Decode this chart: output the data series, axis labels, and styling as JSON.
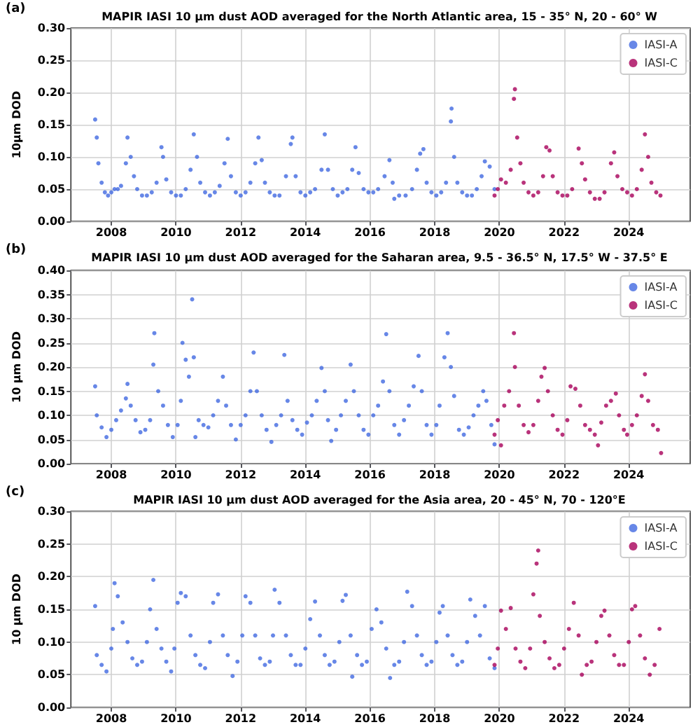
{
  "chart_data": [
    {
      "type": "scatter",
      "title": "MAPIR IASI 10 µm dust AOD averaged for the North Atlantic area, 15 - 35° N, 20 - 60° W",
      "ylabel": "10µm DOD",
      "annotations": [
        "(a)"
      ],
      "legend": "top right",
      "grid": true,
      "marker": "circle",
      "xlim": [
        2006.75,
        2025.9
      ],
      "xticks": [
        2008,
        2010,
        2012,
        2014,
        2016,
        2018,
        2020,
        2022,
        2024
      ],
      "ylim": [
        0,
        0.3
      ],
      "yticks": [
        {
          "value": 0,
          "label": "0.00"
        },
        {
          "value": 0.05,
          "label": "0.05"
        },
        {
          "value": 0.1,
          "label": "0.10"
        },
        {
          "value": 0.15,
          "label": "0.15"
        },
        {
          "value": 0.2,
          "label": "0.20"
        },
        {
          "value": 0.25,
          "label": "0.25"
        },
        {
          "value": 0.3,
          "label": "0.30"
        }
      ],
      "series": [
        {
          "name": "IASI-A",
          "color": "#4169e1",
          "x": [
            2007.5,
            2007.55,
            2007.6,
            2007.7,
            2007.8,
            2007.9,
            2008.0,
            2008.1,
            2008.2,
            2008.3,
            2008.45,
            2008.5,
            2008.6,
            2008.7,
            2008.8,
            2008.95,
            2009.1,
            2009.25,
            2009.4,
            2009.55,
            2009.6,
            2009.7,
            2009.85,
            2010.0,
            2010.15,
            2010.3,
            2010.45,
            2010.55,
            2010.65,
            2010.75,
            2010.9,
            2011.05,
            2011.2,
            2011.35,
            2011.5,
            2011.6,
            2011.7,
            2011.85,
            2012.0,
            2012.15,
            2012.3,
            2012.45,
            2012.55,
            2012.65,
            2012.75,
            2012.9,
            2013.05,
            2013.2,
            2013.4,
            2013.55,
            2013.6,
            2013.7,
            2013.85,
            2014.0,
            2014.15,
            2014.3,
            2014.5,
            2014.6,
            2014.7,
            2014.85,
            2015.0,
            2015.15,
            2015.3,
            2015.45,
            2015.55,
            2015.65,
            2015.8,
            2015.95,
            2016.1,
            2016.25,
            2016.45,
            2016.6,
            2016.7,
            2016.75,
            2016.9,
            2017.1,
            2017.3,
            2017.45,
            2017.55,
            2017.65,
            2017.75,
            2017.9,
            2018.05,
            2018.2,
            2018.35,
            2018.5,
            2018.52,
            2018.6,
            2018.7,
            2018.85,
            2019.0,
            2019.15,
            2019.3,
            2019.45,
            2019.55,
            2019.7,
            2019.85
          ],
          "values": [
            0.158,
            0.13,
            0.09,
            0.06,
            0.045,
            0.04,
            0.045,
            0.05,
            0.05,
            0.055,
            0.09,
            0.13,
            0.1,
            0.07,
            0.05,
            0.04,
            0.04,
            0.045,
            0.06,
            0.115,
            0.1,
            0.065,
            0.045,
            0.04,
            0.04,
            0.05,
            0.08,
            0.135,
            0.1,
            0.06,
            0.045,
            0.04,
            0.045,
            0.055,
            0.09,
            0.128,
            0.07,
            0.045,
            0.04,
            0.045,
            0.06,
            0.09,
            0.13,
            0.095,
            0.06,
            0.045,
            0.04,
            0.04,
            0.07,
            0.12,
            0.13,
            0.07,
            0.045,
            0.04,
            0.045,
            0.05,
            0.08,
            0.135,
            0.08,
            0.05,
            0.04,
            0.045,
            0.05,
            0.08,
            0.115,
            0.075,
            0.05,
            0.045,
            0.045,
            0.05,
            0.07,
            0.095,
            0.06,
            0.035,
            0.04,
            0.04,
            0.05,
            0.08,
            0.105,
            0.112,
            0.06,
            0.045,
            0.04,
            0.045,
            0.06,
            0.155,
            0.175,
            0.1,
            0.06,
            0.045,
            0.04,
            0.04,
            0.05,
            0.07,
            0.093,
            0.085,
            0.05
          ]
        },
        {
          "name": "IASI-C",
          "color": "#a8005a",
          "x": [
            2019.85,
            2019.95,
            2020.05,
            2020.2,
            2020.35,
            2020.45,
            2020.48,
            2020.55,
            2020.65,
            2020.75,
            2020.9,
            2021.05,
            2021.2,
            2021.35,
            2021.45,
            2021.55,
            2021.65,
            2021.8,
            2021.95,
            2022.1,
            2022.25,
            2022.45,
            2022.55,
            2022.65,
            2022.8,
            2022.95,
            2023.1,
            2023.25,
            2023.45,
            2023.55,
            2023.65,
            2023.8,
            2023.95,
            2024.1,
            2024.25,
            2024.4,
            2024.5,
            2024.6,
            2024.7,
            2024.85,
            2024.98
          ],
          "values": [
            0.04,
            0.05,
            0.065,
            0.06,
            0.08,
            0.19,
            0.205,
            0.13,
            0.09,
            0.06,
            0.045,
            0.04,
            0.045,
            0.07,
            0.115,
            0.11,
            0.07,
            0.045,
            0.04,
            0.04,
            0.05,
            0.113,
            0.09,
            0.065,
            0.045,
            0.035,
            0.035,
            0.045,
            0.09,
            0.107,
            0.07,
            0.05,
            0.045,
            0.04,
            0.05,
            0.08,
            0.135,
            0.1,
            0.06,
            0.045,
            0.04
          ]
        }
      ]
    },
    {
      "type": "scatter",
      "title": "MAPIR IASI 10 µm dust AOD averaged for the Saharan area, 9.5 - 36.5° N, 17.5° W - 37.5° E",
      "ylabel": "10 µm DOD",
      "annotations": [
        "(b)"
      ],
      "legend": "top right",
      "grid": true,
      "marker": "circle",
      "xlim": [
        2006.75,
        2025.9
      ],
      "xticks": [
        2008,
        2010,
        2012,
        2014,
        2016,
        2018,
        2020,
        2022,
        2024
      ],
      "ylim": [
        0,
        0.4
      ],
      "yticks": [
        {
          "value": 0,
          "label": "0.00"
        },
        {
          "value": 0.05,
          "label": "0.05"
        },
        {
          "value": 0.1,
          "label": "0.10"
        },
        {
          "value": 0.15,
          "label": "0.15"
        },
        {
          "value": 0.2,
          "label": "0.20"
        },
        {
          "value": 0.25,
          "label": "0.25"
        },
        {
          "value": 0.3,
          "label": "0.30"
        },
        {
          "value": 0.35,
          "label": "0.35"
        },
        {
          "value": 0.4,
          "label": "0.40"
        }
      ],
      "series": [
        {
          "name": "IASI-A",
          "color": "#4169e1",
          "x": [
            2007.5,
            2007.55,
            2007.7,
            2007.85,
            2008.0,
            2008.15,
            2008.3,
            2008.45,
            2008.5,
            2008.6,
            2008.75,
            2008.9,
            2009.05,
            2009.2,
            2009.3,
            2009.33,
            2009.45,
            2009.6,
            2009.75,
            2009.9,
            2010.05,
            2010.15,
            2010.2,
            2010.3,
            2010.4,
            2010.5,
            2010.55,
            2010.6,
            2010.7,
            2010.85,
            2011.0,
            2011.15,
            2011.3,
            2011.45,
            2011.55,
            2011.7,
            2011.85,
            2012.0,
            2012.15,
            2012.3,
            2012.4,
            2012.5,
            2012.65,
            2012.8,
            2012.95,
            2013.1,
            2013.25,
            2013.35,
            2013.45,
            2013.6,
            2013.75,
            2013.9,
            2014.05,
            2014.2,
            2014.35,
            2014.5,
            2014.6,
            2014.7,
            2014.8,
            2014.95,
            2015.1,
            2015.25,
            2015.4,
            2015.5,
            2015.65,
            2015.8,
            2015.95,
            2016.1,
            2016.25,
            2016.4,
            2016.5,
            2016.6,
            2016.75,
            2016.9,
            2017.05,
            2017.2,
            2017.35,
            2017.5,
            2017.6,
            2017.75,
            2017.9,
            2018.05,
            2018.15,
            2018.3,
            2018.4,
            2018.5,
            2018.6,
            2018.75,
            2018.9,
            2019.05,
            2019.2,
            2019.35,
            2019.5,
            2019.6,
            2019.75,
            2019.85
          ],
          "values": [
            0.16,
            0.1,
            0.075,
            0.055,
            0.07,
            0.09,
            0.11,
            0.135,
            0.165,
            0.12,
            0.09,
            0.065,
            0.07,
            0.09,
            0.205,
            0.27,
            0.15,
            0.12,
            0.08,
            0.055,
            0.08,
            0.13,
            0.25,
            0.215,
            0.18,
            0.34,
            0.22,
            0.055,
            0.09,
            0.08,
            0.075,
            0.1,
            0.13,
            0.18,
            0.12,
            0.08,
            0.05,
            0.08,
            0.1,
            0.15,
            0.23,
            0.15,
            0.1,
            0.07,
            0.045,
            0.08,
            0.1,
            0.225,
            0.13,
            0.09,
            0.07,
            0.06,
            0.085,
            0.1,
            0.13,
            0.198,
            0.15,
            0.09,
            0.047,
            0.07,
            0.1,
            0.13,
            0.205,
            0.15,
            0.1,
            0.07,
            0.06,
            0.1,
            0.12,
            0.17,
            0.268,
            0.15,
            0.08,
            0.06,
            0.09,
            0.12,
            0.16,
            0.223,
            0.15,
            0.08,
            0.06,
            0.08,
            0.12,
            0.22,
            0.27,
            0.2,
            0.14,
            0.07,
            0.06,
            0.075,
            0.1,
            0.12,
            0.15,
            0.13,
            0.08,
            0.04
          ]
        },
        {
          "name": "IASI-C",
          "color": "#a8005a",
          "x": [
            2019.85,
            2019.95,
            2020.05,
            2020.15,
            2020.3,
            2020.45,
            2020.48,
            2020.6,
            2020.75,
            2020.9,
            2021.05,
            2021.2,
            2021.3,
            2021.4,
            2021.5,
            2021.65,
            2021.8,
            2021.95,
            2022.1,
            2022.2,
            2022.35,
            2022.5,
            2022.65,
            2022.8,
            2022.95,
            2023.05,
            2023.15,
            2023.3,
            2023.45,
            2023.6,
            2023.7,
            2023.85,
            2023.95,
            2024.1,
            2024.25,
            2024.4,
            2024.5,
            2024.6,
            2024.75,
            2024.9,
            2025.0
          ],
          "values": [
            0.06,
            0.09,
            0.038,
            0.12,
            0.15,
            0.27,
            0.2,
            0.12,
            0.08,
            0.065,
            0.08,
            0.13,
            0.18,
            0.198,
            0.15,
            0.1,
            0.07,
            0.06,
            0.09,
            0.16,
            0.155,
            0.12,
            0.08,
            0.07,
            0.06,
            0.038,
            0.085,
            0.12,
            0.13,
            0.145,
            0.1,
            0.07,
            0.06,
            0.08,
            0.1,
            0.14,
            0.185,
            0.13,
            0.08,
            0.07,
            0.022
          ]
        }
      ]
    },
    {
      "type": "scatter",
      "title": "MAPIR IASI 10 µm dust AOD averaged for the Asia area, 20 - 45° N, 70 - 120°E",
      "ylabel": "10 µm DOD",
      "annotations": [
        "(c)"
      ],
      "legend": "top right",
      "grid": true,
      "marker": "circle",
      "xlim": [
        2006.75,
        2025.9
      ],
      "xticks": [
        2008,
        2010,
        2012,
        2014,
        2016,
        2018,
        2020,
        2022,
        2024
      ],
      "ylim": [
        0,
        0.3
      ],
      "yticks": [
        {
          "value": 0,
          "label": "0.00"
        },
        {
          "value": 0.05,
          "label": "0.05"
        },
        {
          "value": 0.1,
          "label": "0.10"
        },
        {
          "value": 0.15,
          "label": "0.15"
        },
        {
          "value": 0.2,
          "label": "0.20"
        },
        {
          "value": 0.25,
          "label": "0.25"
        },
        {
          "value": 0.3,
          "label": "0.30"
        }
      ],
      "series": [
        {
          "name": "IASI-A",
          "color": "#4169e1",
          "x": [
            2007.5,
            2007.55,
            2007.7,
            2007.85,
            2008.0,
            2008.05,
            2008.1,
            2008.2,
            2008.35,
            2008.5,
            2008.65,
            2008.8,
            2008.95,
            2009.1,
            2009.2,
            2009.3,
            2009.4,
            2009.55,
            2009.7,
            2009.85,
            2009.95,
            2010.05,
            2010.15,
            2010.3,
            2010.45,
            2010.6,
            2010.75,
            2010.9,
            2011.05,
            2011.15,
            2011.3,
            2011.45,
            2011.6,
            2011.75,
            2011.9,
            2012.05,
            2012.15,
            2012.3,
            2012.45,
            2012.6,
            2012.75,
            2012.9,
            2013.0,
            2013.05,
            2013.2,
            2013.4,
            2013.55,
            2013.7,
            2013.85,
            2014.0,
            2014.15,
            2014.3,
            2014.45,
            2014.6,
            2014.75,
            2014.9,
            2015.05,
            2015.15,
            2015.25,
            2015.4,
            2015.45,
            2015.6,
            2015.75,
            2015.9,
            2016.05,
            2016.2,
            2016.35,
            2016.5,
            2016.62,
            2016.75,
            2016.9,
            2017.05,
            2017.15,
            2017.3,
            2017.45,
            2017.6,
            2017.75,
            2017.9,
            2018.05,
            2018.15,
            2018.25,
            2018.4,
            2018.55,
            2018.7,
            2018.85,
            2019.0,
            2019.1,
            2019.25,
            2019.4,
            2019.55,
            2019.7,
            2019.85
          ],
          "values": [
            0.155,
            0.08,
            0.065,
            0.055,
            0.09,
            0.12,
            0.19,
            0.17,
            0.13,
            0.1,
            0.075,
            0.065,
            0.07,
            0.1,
            0.15,
            0.195,
            0.12,
            0.09,
            0.07,
            0.055,
            0.09,
            0.16,
            0.175,
            0.17,
            0.11,
            0.08,
            0.065,
            0.06,
            0.1,
            0.16,
            0.173,
            0.11,
            0.08,
            0.048,
            0.07,
            0.11,
            0.17,
            0.16,
            0.11,
            0.075,
            0.065,
            0.07,
            0.11,
            0.18,
            0.16,
            0.11,
            0.08,
            0.065,
            0.065,
            0.09,
            0.135,
            0.162,
            0.11,
            0.08,
            0.065,
            0.07,
            0.1,
            0.163,
            0.172,
            0.11,
            0.047,
            0.08,
            0.065,
            0.07,
            0.12,
            0.15,
            0.13,
            0.09,
            0.045,
            0.065,
            0.07,
            0.1,
            0.177,
            0.155,
            0.11,
            0.08,
            0.065,
            0.07,
            0.1,
            0.145,
            0.155,
            0.11,
            0.08,
            0.065,
            0.07,
            0.1,
            0.165,
            0.14,
            0.11,
            0.155,
            0.075,
            0.06
          ]
        },
        {
          "name": "IASI-C",
          "color": "#a8005a",
          "x": [
            2019.85,
            2019.95,
            2020.05,
            2020.2,
            2020.35,
            2020.5,
            2020.65,
            2020.8,
            2020.95,
            2021.05,
            2021.15,
            2021.2,
            2021.25,
            2021.4,
            2021.55,
            2021.7,
            2021.85,
            2022.0,
            2022.15,
            2022.3,
            2022.45,
            2022.55,
            2022.7,
            2022.85,
            2023.0,
            2023.15,
            2023.25,
            2023.4,
            2023.55,
            2023.7,
            2023.85,
            2024.0,
            2024.1,
            2024.2,
            2024.35,
            2024.5,
            2024.65,
            2024.8,
            2024.95
          ],
          "values": [
            0.065,
            0.09,
            0.148,
            0.12,
            0.152,
            0.09,
            0.07,
            0.06,
            0.09,
            0.173,
            0.22,
            0.24,
            0.14,
            0.1,
            0.075,
            0.06,
            0.065,
            0.09,
            0.12,
            0.16,
            0.11,
            0.05,
            0.065,
            0.07,
            0.1,
            0.14,
            0.148,
            0.11,
            0.08,
            0.065,
            0.065,
            0.1,
            0.15,
            0.155,
            0.11,
            0.075,
            0.05,
            0.065,
            0.12
          ]
        }
      ]
    }
  ]
}
